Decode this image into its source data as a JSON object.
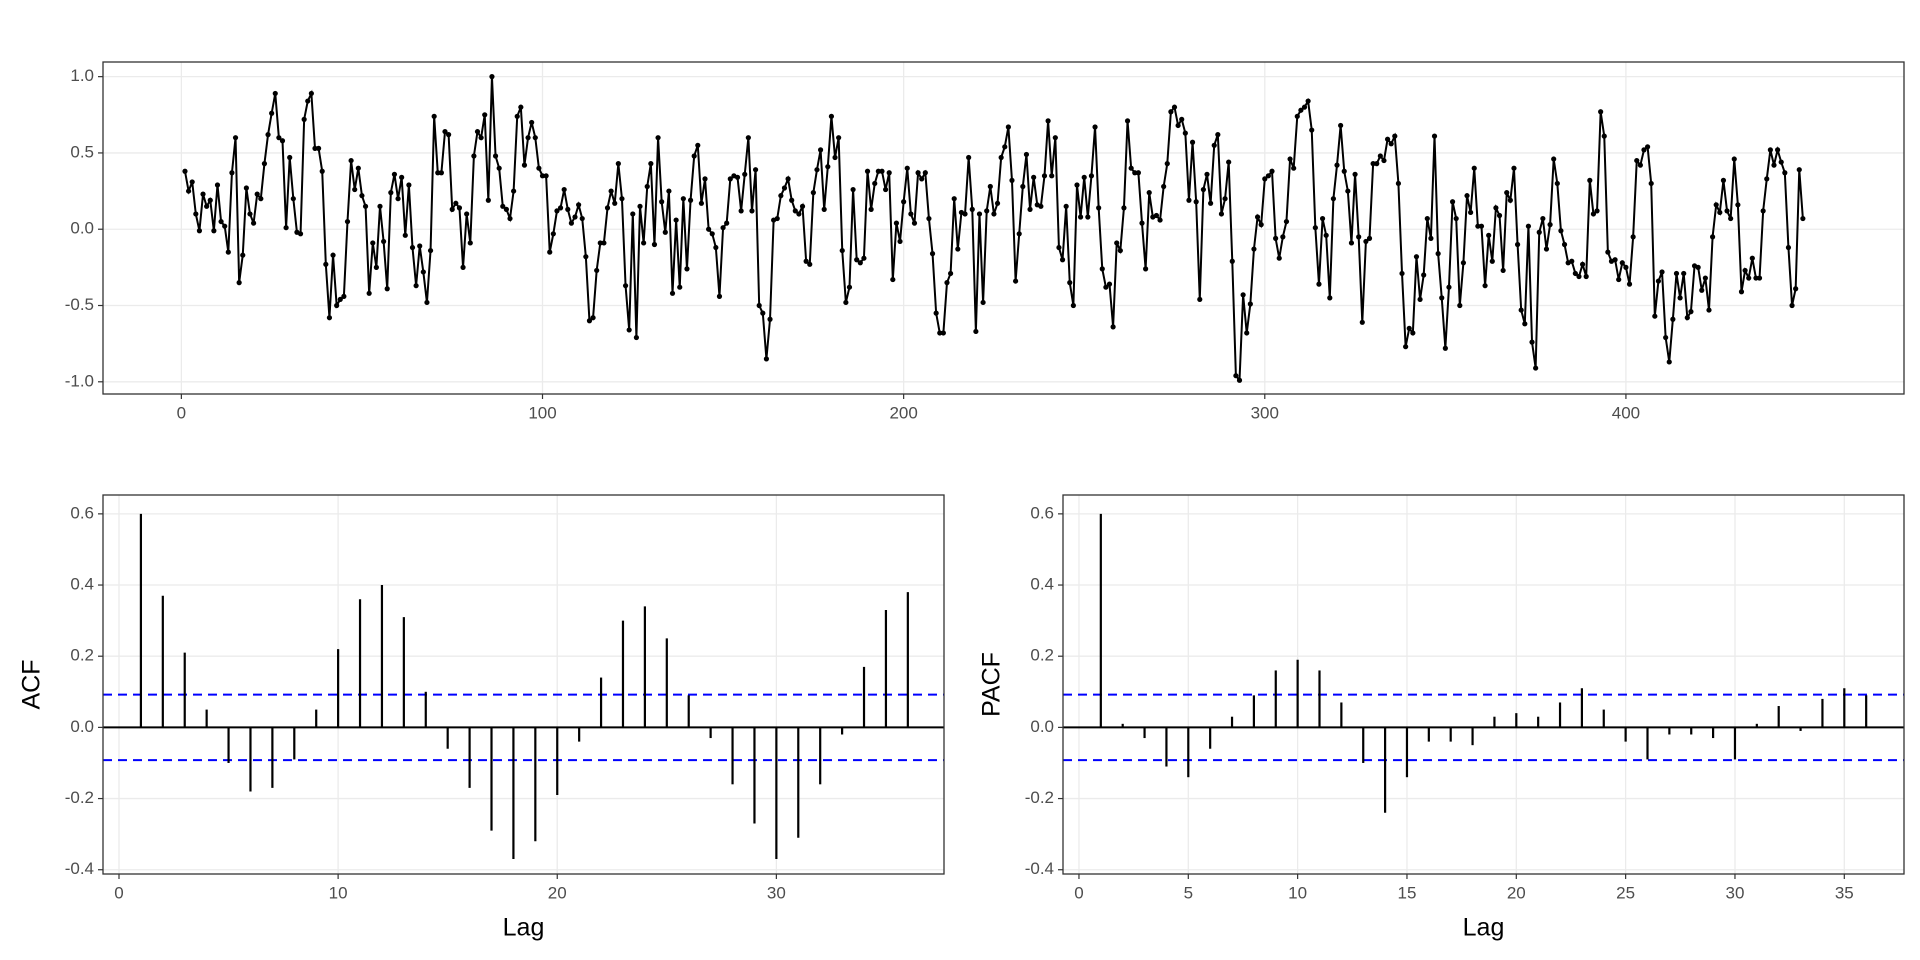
{
  "chart_data": [
    {
      "type": "line",
      "color": "#000000",
      "markers": true,
      "grid": true,
      "xlim": [
        -21.7,
        477
      ],
      "ylim": [
        -1.08,
        1.096
      ],
      "xticks": [
        0,
        100,
        200,
        300,
        400
      ],
      "yticks": [
        {
          "value": 1,
          "label": "1.0"
        },
        0.5,
        {
          "value": 0,
          "label": "0.0"
        },
        -0.5,
        {
          "value": -1,
          "label": "-1.0"
        }
      ],
      "values": [
        0.38,
        0.25,
        0.31,
        0.1,
        -0.01,
        0.23,
        0.15,
        0.19,
        -0.01,
        0.29,
        0.05,
        0.02,
        -0.15,
        0.37,
        0.6,
        -0.35,
        -0.17,
        0.27,
        0.1,
        0.04,
        0.23,
        0.2,
        0.43,
        0.62,
        0.76,
        0.89,
        0.6,
        0.58,
        0.01,
        0.47,
        0.2,
        -0.02,
        -0.03,
        0.72,
        0.84,
        0.89,
        0.53,
        0.53,
        0.38,
        -0.23,
        -0.58,
        -0.17,
        -0.5,
        -0.46,
        -0.44,
        0.05,
        0.45,
        0.26,
        0.4,
        0.22,
        0.15,
        -0.42,
        -0.09,
        -0.25,
        0.15,
        -0.08,
        -0.39,
        0.24,
        0.36,
        0.2,
        0.34,
        -0.04,
        0.29,
        -0.12,
        -0.37,
        -0.11,
        -0.28,
        -0.48,
        -0.14,
        0.74,
        0.37,
        0.37,
        0.64,
        0.62,
        0.13,
        0.17,
        0.14,
        -0.25,
        0.1,
        -0.09,
        0.48,
        0.64,
        0.6,
        0.75,
        0.19,
        1.0,
        0.48,
        0.4,
        0.15,
        0.13,
        0.07,
        0.25,
        0.74,
        0.8,
        0.42,
        0.6,
        0.7,
        0.6,
        0.4,
        0.35,
        0.35,
        -0.15,
        -0.03,
        0.12,
        0.14,
        0.26,
        0.13,
        0.04,
        0.08,
        0.16,
        0.07,
        -0.18,
        -0.6,
        -0.58,
        -0.27,
        -0.09,
        -0.09,
        0.14,
        0.25,
        0.17,
        0.43,
        0.2,
        -0.37,
        -0.66,
        0.1,
        -0.71,
        0.15,
        -0.09,
        0.28,
        0.43,
        -0.1,
        0.6,
        0.18,
        -0.02,
        0.25,
        -0.42,
        0.06,
        -0.38,
        0.2,
        -0.26,
        0.19,
        0.48,
        0.55,
        0.17,
        0.33,
        0.0,
        -0.03,
        -0.12,
        -0.44,
        0.01,
        0.04,
        0.33,
        0.35,
        0.34,
        0.12,
        0.36,
        0.6,
        0.12,
        0.39,
        -0.5,
        -0.55,
        -0.85,
        -0.59,
        0.06,
        0.07,
        0.22,
        0.27,
        0.33,
        0.19,
        0.12,
        0.1,
        0.15,
        -0.21,
        -0.23,
        0.24,
        0.39,
        0.52,
        0.13,
        0.41,
        0.74,
        0.47,
        0.6,
        -0.14,
        -0.48,
        -0.38,
        0.26,
        -0.2,
        -0.22,
        -0.19,
        0.38,
        0.13,
        0.3,
        0.38,
        0.38,
        0.26,
        0.37,
        -0.33,
        0.04,
        -0.08,
        0.18,
        0.4,
        0.1,
        0.04,
        0.37,
        0.33,
        0.37,
        0.07,
        -0.16,
        -0.55,
        -0.68,
        -0.68,
        -0.35,
        -0.29,
        0.2,
        -0.13,
        0.11,
        0.1,
        0.47,
        0.13,
        -0.67,
        0.1,
        -0.48,
        0.12,
        0.28,
        0.1,
        0.17,
        0.47,
        0.54,
        0.67,
        0.32,
        -0.34,
        -0.03,
        0.28,
        0.49,
        0.13,
        0.34,
        0.16,
        0.15,
        0.35,
        0.71,
        0.35,
        0.6,
        -0.12,
        -0.2,
        0.15,
        -0.35,
        -0.5,
        0.29,
        0.08,
        0.34,
        0.08,
        0.35,
        0.67,
        0.14,
        -0.26,
        -0.38,
        -0.36,
        -0.64,
        -0.09,
        -0.14,
        0.14,
        0.71,
        0.4,
        0.37,
        0.37,
        0.04,
        -0.26,
        0.24,
        0.08,
        0.09,
        0.06,
        0.28,
        0.43,
        0.77,
        0.8,
        0.68,
        0.72,
        0.63,
        0.19,
        0.57,
        0.18,
        -0.46,
        0.26,
        0.36,
        0.17,
        0.55,
        0.62,
        0.1,
        0.2,
        0.44,
        -0.21,
        -0.96,
        -0.99,
        -0.43,
        -0.68,
        -0.49,
        -0.13,
        0.08,
        0.03,
        0.33,
        0.35,
        0.38,
        -0.06,
        -0.19,
        -0.05,
        0.05,
        0.46,
        0.4,
        0.74,
        0.78,
        0.8,
        0.84,
        0.65,
        0.01,
        -0.36,
        0.07,
        -0.04,
        -0.45,
        0.2,
        0.42,
        0.68,
        0.38,
        0.25,
        -0.09,
        0.36,
        -0.05,
        -0.61,
        -0.08,
        -0.06,
        0.43,
        0.43,
        0.48,
        0.45,
        0.59,
        0.56,
        0.61,
        0.3,
        -0.29,
        -0.77,
        -0.65,
        -0.68,
        -0.18,
        -0.46,
        -0.3,
        0.07,
        -0.06,
        0.61,
        -0.16,
        -0.45,
        -0.78,
        -0.38,
        0.18,
        0.07,
        -0.5,
        -0.22,
        0.22,
        0.11,
        0.4,
        0.02,
        0.02,
        -0.37,
        -0.04,
        -0.21,
        0.14,
        0.09,
        -0.27,
        0.24,
        0.19,
        0.4,
        -0.1,
        -0.53,
        -0.62,
        0.02,
        -0.74,
        -0.91,
        -0.02,
        0.07,
        -0.13,
        0.03,
        0.46,
        0.3,
        -0.01,
        -0.1,
        -0.22,
        -0.21,
        -0.29,
        -0.31,
        -0.23,
        -0.31,
        0.32,
        0.1,
        0.12,
        0.77,
        0.61,
        -0.15,
        -0.21,
        -0.2,
        -0.33,
        -0.22,
        -0.25,
        -0.36,
        -0.05,
        0.45,
        0.42,
        0.52,
        0.54,
        0.3,
        -0.57,
        -0.34,
        -0.28,
        -0.71,
        -0.87,
        -0.59,
        -0.29,
        -0.45,
        -0.29,
        -0.58,
        -0.54,
        -0.24,
        -0.25,
        -0.4,
        -0.32,
        -0.53,
        -0.05,
        0.16,
        0.11,
        0.32,
        0.12,
        0.07,
        0.46,
        0.16,
        -0.41,
        -0.27,
        -0.32,
        -0.19,
        -0.32,
        -0.32,
        0.12,
        0.33,
        0.52,
        0.42,
        0.52,
        0.44,
        0.37,
        -0.12,
        -0.5,
        -0.39,
        0.39,
        0.07
      ]
    },
    {
      "type": "stem",
      "color": "#000000",
      "grid": true,
      "x_label": "Lag",
      "y_label": "ACF",
      "xlim": [
        -0.73,
        37.65
      ],
      "ylim": [
        -0.412,
        0.653
      ],
      "xticks": [
        0,
        10,
        20,
        30
      ],
      "yticks": [
        0.6,
        0.4,
        0.2,
        {
          "value": 0,
          "label": "0.0"
        },
        -0.2,
        -0.4
      ],
      "conf_limits": [
        0.092,
        -0.092
      ],
      "conf_color": "#0000ff",
      "x": [
        1,
        2,
        3,
        4,
        5,
        6,
        7,
        8,
        9,
        10,
        11,
        12,
        13,
        14,
        15,
        16,
        17,
        18,
        19,
        20,
        21,
        22,
        23,
        24,
        25,
        26,
        27,
        28,
        29,
        30,
        31,
        32,
        33,
        34,
        35,
        36
      ],
      "values": [
        0.6,
        0.37,
        0.21,
        0.05,
        -0.1,
        -0.18,
        -0.17,
        -0.09,
        0.05,
        0.22,
        0.36,
        0.4,
        0.31,
        0.1,
        -0.06,
        -0.17,
        -0.29,
        -0.37,
        -0.32,
        -0.19,
        -0.04,
        0.14,
        0.3,
        0.34,
        0.25,
        0.09,
        -0.03,
        -0.16,
        -0.27,
        -0.37,
        -0.31,
        -0.16,
        -0.02,
        0.17,
        0.33,
        0.38
      ]
    },
    {
      "type": "stem",
      "color": "#000000",
      "grid": true,
      "x_label": "Lag",
      "y_label": "PACF",
      "xlim": [
        -0.73,
        37.73
      ],
      "ylim": [
        -0.412,
        0.653
      ],
      "xticks": [
        0,
        5,
        10,
        15,
        20,
        25,
        30,
        35
      ],
      "yticks": [
        0.6,
        0.4,
        0.2,
        {
          "value": 0,
          "label": "0.0"
        },
        -0.2,
        -0.4
      ],
      "conf_limits": [
        0.092,
        -0.092
      ],
      "conf_color": "#0000ff",
      "x": [
        1,
        2,
        3,
        4,
        5,
        6,
        7,
        8,
        9,
        10,
        11,
        12,
        13,
        14,
        15,
        16,
        17,
        18,
        19,
        20,
        21,
        22,
        23,
        24,
        25,
        26,
        27,
        28,
        29,
        30,
        31,
        32,
        33,
        34,
        35,
        36
      ],
      "values": [
        0.6,
        0.01,
        -0.03,
        -0.11,
        -0.14,
        -0.06,
        0.03,
        0.09,
        0.16,
        0.19,
        0.16,
        0.07,
        -0.1,
        -0.24,
        -0.14,
        -0.04,
        -0.04,
        -0.05,
        0.03,
        0.04,
        0.03,
        0.07,
        0.11,
        0.05,
        -0.04,
        -0.09,
        -0.02,
        -0.02,
        -0.03,
        -0.09,
        0.01,
        0.06,
        -0.01,
        0.08,
        0.11,
        0.09
      ]
    }
  ]
}
